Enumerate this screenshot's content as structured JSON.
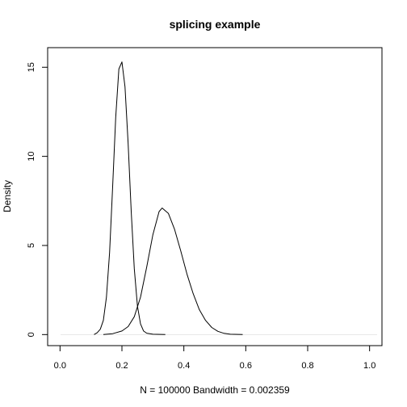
{
  "chart_data": {
    "type": "line",
    "title": "splicing example",
    "xlabel": "N = 100000   Bandwidth = 0.002359",
    "ylabel": "Density",
    "xlim": [
      -0.04,
      1.04
    ],
    "ylim": [
      -0.62,
      16.1
    ],
    "x_ticks": [
      0.0,
      0.2,
      0.4,
      0.6,
      0.8,
      1.0
    ],
    "x_tick_labels": [
      "0.0",
      "0.2",
      "0.4",
      "0.6",
      "0.8",
      "1.0"
    ],
    "y_ticks": [
      0,
      5,
      10,
      15
    ],
    "y_tick_labels": [
      "0",
      "5",
      "10",
      "15"
    ],
    "grid": false,
    "box": true,
    "series": [
      {
        "x": [
          0.11,
          0.12,
          0.13,
          0.14,
          0.15,
          0.16,
          0.17,
          0.18,
          0.19,
          0.2,
          0.21,
          0.22,
          0.23,
          0.24,
          0.25,
          0.26,
          0.27,
          0.28,
          0.3,
          0.34
        ],
        "values": [
          0.0,
          0.1,
          0.3,
          0.8,
          2.1,
          4.6,
          8.3,
          12.2,
          14.9,
          15.3,
          13.9,
          10.7,
          6.9,
          3.7,
          1.6,
          0.6,
          0.2,
          0.08,
          0.02,
          0.0
        ]
      },
      {
        "x": [
          0.14,
          0.17,
          0.2,
          0.22,
          0.24,
          0.26,
          0.28,
          0.3,
          0.32,
          0.33,
          0.35,
          0.37,
          0.39,
          0.41,
          0.43,
          0.45,
          0.47,
          0.49,
          0.51,
          0.53,
          0.55,
          0.59
        ],
        "values": [
          0.0,
          0.05,
          0.2,
          0.45,
          1.0,
          2.1,
          3.8,
          5.6,
          6.9,
          7.1,
          6.8,
          5.9,
          4.7,
          3.4,
          2.3,
          1.4,
          0.8,
          0.4,
          0.18,
          0.07,
          0.02,
          0.0
        ]
      }
    ]
  }
}
